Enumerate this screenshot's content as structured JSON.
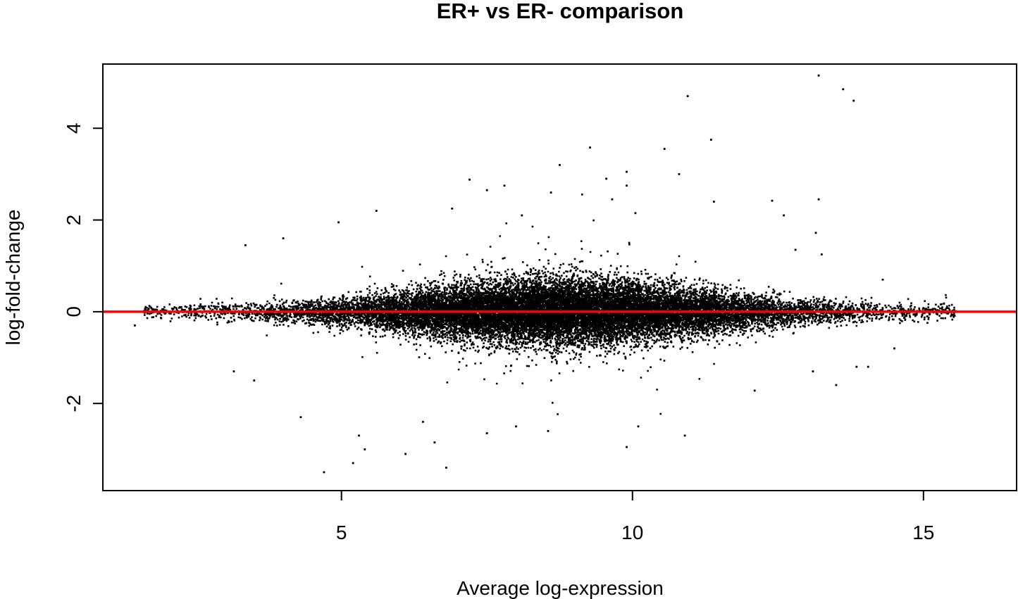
{
  "chart_data": {
    "type": "scatter",
    "title": "ER+ vs ER- comparison",
    "xlabel": "Average log-expression",
    "ylabel": "log-fold-change",
    "xlim": [
      0.9,
      16.6
    ],
    "ylim": [
      -3.9,
      5.4
    ],
    "x_ticks": [
      5,
      10,
      15
    ],
    "y_ticks": [
      -2,
      0,
      2,
      4
    ],
    "grid": false,
    "legend": "none",
    "point_color": "#000000",
    "reference_line": {
      "y": 0,
      "color": "#ff0000"
    },
    "bulk": {
      "approx_points": 20000,
      "x_range": [
        1.6,
        15.6
      ],
      "peak_x": 8.8,
      "sd_at_peak": 0.36
    },
    "outliers": [
      {
        "x": 13.2,
        "y": 5.15
      },
      {
        "x": 13.62,
        "y": 4.85
      },
      {
        "x": 13.8,
        "y": 4.6
      },
      {
        "x": 10.95,
        "y": 4.7
      },
      {
        "x": 11.35,
        "y": 3.75
      },
      {
        "x": 9.27,
        "y": 3.58
      },
      {
        "x": 10.55,
        "y": 3.55
      },
      {
        "x": 8.75,
        "y": 3.2
      },
      {
        "x": 9.9,
        "y": 3.05
      },
      {
        "x": 10.8,
        "y": 3.0
      },
      {
        "x": 9.55,
        "y": 2.9
      },
      {
        "x": 7.2,
        "y": 2.88
      },
      {
        "x": 9.9,
        "y": 2.75
      },
      {
        "x": 7.8,
        "y": 2.75
      },
      {
        "x": 7.5,
        "y": 2.65
      },
      {
        "x": 8.6,
        "y": 2.6
      },
      {
        "x": 13.2,
        "y": 2.45
      },
      {
        "x": 9.65,
        "y": 2.45
      },
      {
        "x": 11.4,
        "y": 2.4
      },
      {
        "x": 12.4,
        "y": 2.42
      },
      {
        "x": 5.6,
        "y": 2.2
      },
      {
        "x": 6.9,
        "y": 2.25
      },
      {
        "x": 8.1,
        "y": 2.1
      },
      {
        "x": 12.6,
        "y": 2.1
      },
      {
        "x": 10.05,
        "y": 2.15
      },
      {
        "x": 4.95,
        "y": 1.95
      },
      {
        "x": 4.0,
        "y": 1.6
      },
      {
        "x": 3.35,
        "y": 1.45
      },
      {
        "x": 13.15,
        "y": 1.72
      },
      {
        "x": 13.25,
        "y": 1.25
      },
      {
        "x": 12.8,
        "y": 1.35
      },
      {
        "x": 14.3,
        "y": 0.7
      },
      {
        "x": 1.45,
        "y": -0.3
      },
      {
        "x": 3.15,
        "y": -1.3
      },
      {
        "x": 3.5,
        "y": -1.5
      },
      {
        "x": 4.3,
        "y": -2.3
      },
      {
        "x": 4.7,
        "y": -3.5
      },
      {
        "x": 5.2,
        "y": -3.3
      },
      {
        "x": 5.4,
        "y": -3.0
      },
      {
        "x": 5.3,
        "y": -2.7
      },
      {
        "x": 6.1,
        "y": -3.1
      },
      {
        "x": 6.8,
        "y": -3.4
      },
      {
        "x": 6.6,
        "y": -2.85
      },
      {
        "x": 6.4,
        "y": -2.4
      },
      {
        "x": 7.5,
        "y": -2.65
      },
      {
        "x": 8.0,
        "y": -2.5
      },
      {
        "x": 8.55,
        "y": -2.6
      },
      {
        "x": 9.9,
        "y": -2.95
      },
      {
        "x": 10.1,
        "y": -2.5
      },
      {
        "x": 10.9,
        "y": -2.7
      },
      {
        "x": 12.1,
        "y": -1.72
      },
      {
        "x": 13.5,
        "y": -1.6
      },
      {
        "x": 13.85,
        "y": -1.2
      },
      {
        "x": 14.05,
        "y": -1.2
      },
      {
        "x": 14.5,
        "y": -0.8
      },
      {
        "x": 13.1,
        "y": -1.3
      }
    ]
  }
}
